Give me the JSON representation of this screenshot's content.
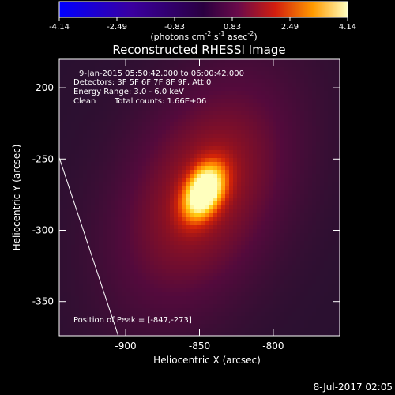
{
  "chart_data": {
    "type": "heatmap",
    "title": "Reconstructed RHESSI Image",
    "xlabel": "Heliocentric X (arcsec)",
    "ylabel": "Heliocentric Y (arcsec)",
    "xlim": [
      -945,
      -755
    ],
    "ylim": [
      -374,
      -180
    ],
    "x_ticks": [
      -900,
      -850,
      -800
    ],
    "y_ticks": [
      -200,
      -250,
      -300,
      -350
    ],
    "colorbar": {
      "ticks": [
        "-4.14",
        "-2.49",
        "-0.83",
        "0.83",
        "2.49",
        "4.14"
      ],
      "unit_label": "(photons cm",
      "unit_exp1": "-2",
      "unit_mid": " s",
      "unit_exp2": "-1",
      "unit_mid2": " asec",
      "unit_exp3": "-2",
      "unit_end": ")",
      "range": [
        -4.14,
        4.14
      ]
    },
    "annotations": [
      "9-Jan-2015 05:50:42.000 to 06:00:42.000",
      "Detectors: 3F 5F 6F 7F 8F 9F, Att 0",
      "Energy Range: 3.0 - 6.0 keV",
      "Clean",
      "Total counts: 1.66E+06"
    ],
    "peak_label": "Position of Peak = [-847,-273]",
    "peak": {
      "x": -847,
      "y": -273,
      "value": 4.14
    },
    "limb_line": [
      [
        -945,
        -249
      ],
      [
        -905,
        -374
      ]
    ]
  },
  "timestamp": "8-Jul-2017 02:05"
}
